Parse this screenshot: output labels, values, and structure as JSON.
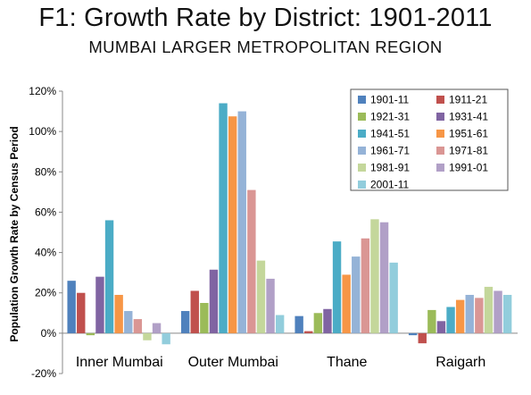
{
  "title": "F1: Growth Rate by District: 1901-2011",
  "subtitle": "MUMBAI LARGER METROPOLITAN REGION",
  "chart_data": {
    "type": "bar",
    "title": "F1: Growth Rate by District: 1901-2011",
    "subtitle": "MUMBAI LARGER METROPOLITAN REGION",
    "xlabel": "",
    "ylabel": "Population Growth Rate by Census Period",
    "ylim": [
      -20,
      120
    ],
    "yticks": [
      "-20%",
      "0%",
      "20%",
      "40%",
      "60%",
      "80%",
      "100%",
      "120%"
    ],
    "grid": false,
    "legend_position": "top-right",
    "categories": [
      "Inner Mumbai",
      "Outer Mumbai",
      "Thane",
      "Raigarh"
    ],
    "series": [
      {
        "name": "1901-11",
        "color": "#4F81BD",
        "values": [
          26,
          11,
          8.5,
          -1
        ]
      },
      {
        "name": "1911-21",
        "color": "#C0504D",
        "values": [
          20,
          21,
          1,
          -5
        ]
      },
      {
        "name": "1921-31",
        "color": "#9BBB59",
        "values": [
          -1,
          15,
          10,
          11.5
        ]
      },
      {
        "name": "1931-41",
        "color": "#8064A2",
        "values": [
          28,
          31.5,
          12,
          6
        ]
      },
      {
        "name": "1941-51",
        "color": "#4BACC6",
        "values": [
          56,
          114,
          45.5,
          13
        ]
      },
      {
        "name": "1951-61",
        "color": "#F79646",
        "values": [
          19,
          107.5,
          29,
          16.5
        ]
      },
      {
        "name": "1961-71",
        "color": "#95B3D7",
        "values": [
          11,
          110,
          38,
          19
        ]
      },
      {
        "name": "1971-81",
        "color": "#DA9694",
        "values": [
          7,
          71,
          47,
          17.5
        ]
      },
      {
        "name": "1981-91",
        "color": "#C4D79B",
        "values": [
          -3.5,
          36,
          56.5,
          23
        ]
      },
      {
        "name": "1991-01",
        "color": "#B1A0C7",
        "values": [
          5,
          27,
          55,
          21
        ]
      },
      {
        "name": "2001-11",
        "color": "#92CDDC",
        "values": [
          -5.5,
          9,
          35,
          19
        ]
      }
    ]
  }
}
